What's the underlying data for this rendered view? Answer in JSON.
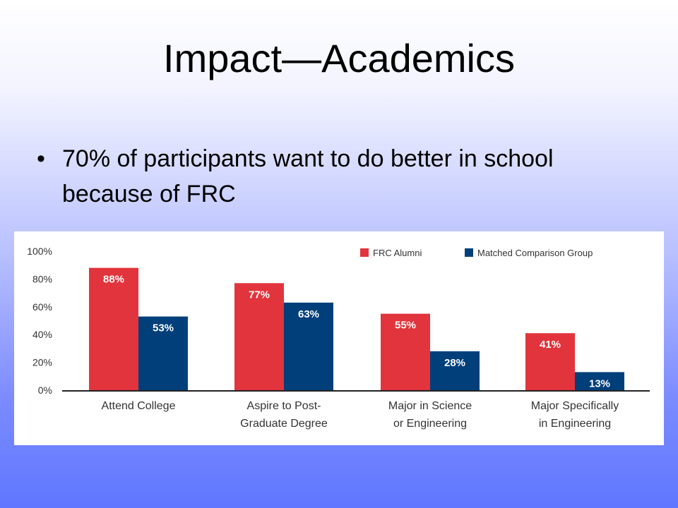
{
  "slide": {
    "title": "Impact—Academics",
    "bullet": "•",
    "bullet_text": "70% of participants want to do better in school because of FRC"
  },
  "chart_data": {
    "type": "bar",
    "categories": [
      [
        "Attend College"
      ],
      [
        "Aspire to Post-",
        "Graduate Degree"
      ],
      [
        "Major in Science",
        "or Engineering"
      ],
      [
        "Major Specifically",
        "in Engineering"
      ]
    ],
    "series": [
      {
        "name": "FRC Alumni",
        "values": [
          88,
          77,
          55,
          41
        ],
        "labels": [
          "88%",
          "77%",
          "55%",
          "41%"
        ],
        "color": "#e1343c"
      },
      {
        "name": "Matched Comparison Group",
        "values": [
          53,
          63,
          28,
          13
        ],
        "labels": [
          "53%",
          "63%",
          "28%",
          "13%"
        ],
        "color": "#003f7a"
      }
    ],
    "yticks": [
      0,
      20,
      40,
      60,
      80,
      100
    ],
    "yticklabels": [
      "0%",
      "20%",
      "40%",
      "60%",
      "80%",
      "100%"
    ],
    "ylim": [
      0,
      100
    ],
    "legend_position": "top-right",
    "grid": false
  }
}
